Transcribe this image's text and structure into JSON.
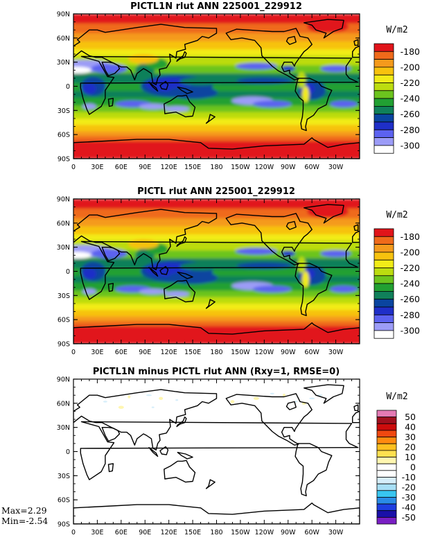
{
  "panels": [
    {
      "title": "PICTL1N rlut ANN 225001_229912",
      "units": "W/m2",
      "colorbar_labels": [
        "-180",
        "-200",
        "-220",
        "-240",
        "-260",
        "-280",
        "-300"
      ],
      "colors": [
        "#ffffff",
        "#9c9cf7",
        "#5c62f0",
        "#1f2fc8",
        "#0a45a0",
        "#10805a",
        "#21a032",
        "#6cc41e",
        "#bcdc10",
        "#f2ec18",
        "#f7c20e",
        "#f59a1c",
        "#ef6a1a",
        "#e1141a"
      ]
    },
    {
      "title": "PICTL rlut ANN 225001_229912",
      "units": "W/m2",
      "colorbar_labels": [
        "-180",
        "-200",
        "-220",
        "-240",
        "-260",
        "-280",
        "-300"
      ],
      "colors": [
        "#ffffff",
        "#9c9cf7",
        "#5c62f0",
        "#1f2fc8",
        "#0a45a0",
        "#10805a",
        "#21a032",
        "#6cc41e",
        "#bcdc10",
        "#f2ec18",
        "#f7c20e",
        "#f59a1c",
        "#ef6a1a",
        "#e1141a"
      ]
    },
    {
      "title": "PICTL1N minus PICTL rlut ANN (Rxy=1, RMSE=0)",
      "units": "W/m2",
      "colorbar_labels": [
        "50",
        "40",
        "30",
        "20",
        "10",
        "0",
        "-10",
        "-20",
        "-30",
        "-40",
        "-50"
      ],
      "colors": [
        "#7a1fc4",
        "#1a10a8",
        "#1e3fe0",
        "#2a8ce6",
        "#38c6f0",
        "#a7dff6",
        "#d6eefa",
        "#ffffff",
        "#ffffff",
        "#fff6b0",
        "#ffe050",
        "#ffc020",
        "#ff8a10",
        "#f04810",
        "#cc0c0c",
        "#a0101e",
        "#e47ab4"
      ],
      "max_text": "Max=2.29",
      "min_text": "Min=-2.54"
    }
  ],
  "lat_labels": [
    "90N",
    "60N",
    "30N",
    "0",
    "30S",
    "60S",
    "90S"
  ],
  "lon_labels": [
    "0",
    "30E",
    "60E",
    "90E",
    "120E",
    "150E",
    "180",
    "150W",
    "120W",
    "90W",
    "60W",
    "30W"
  ]
}
